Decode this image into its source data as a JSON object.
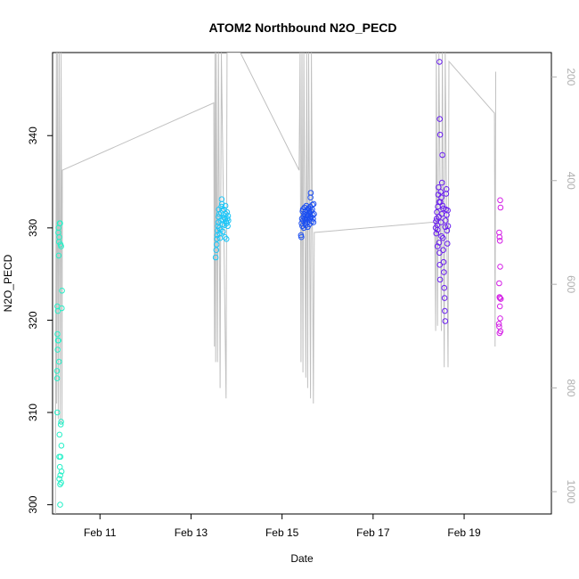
{
  "chart_data": {
    "type": "scatter",
    "title": "ATOM2 Northbound N2O_PECD",
    "xlabel": "Date",
    "ylabel": "N2O_PECD",
    "x_ticks": [
      "Feb 11",
      "Feb 13",
      "Feb 15",
      "Feb 17",
      "Feb 19"
    ],
    "y_ticks": [
      300,
      310,
      320,
      330,
      340
    ],
    "y2_ticks": [
      200,
      400,
      600,
      800,
      1000
    ],
    "xlim": [
      "2016-02-09T23:00",
      "2016-02-20T22:00"
    ],
    "ylim": [
      299,
      349
    ],
    "y2lim": [
      1043,
      153
    ],
    "y2_reversed": true,
    "colors": {
      "flight1": "#25f0c8",
      "flight2": "#1ec6f7",
      "flight3": "#1c4ff0",
      "flight4": "#6a1ef0",
      "flight5": "#d41ee6",
      "altitude": "#c0c0c0"
    },
    "series": [
      {
        "color_key": "flight1",
        "points": [
          [
            "2016-02-10T02:00",
            329.5
          ],
          [
            "2016-02-10T02:10",
            330.0
          ],
          [
            "2016-02-10T02:20",
            328.5
          ],
          [
            "2016-02-10T02:30",
            329.0
          ],
          [
            "2016-02-10T02:45",
            330.5
          ],
          [
            "2016-02-10T03:00",
            330.5
          ],
          [
            "2016-02-10T03:15",
            328.2
          ],
          [
            "2016-02-10T03:30",
            328.0
          ],
          [
            "2016-02-10T02:15",
            327.0
          ],
          [
            "2016-02-10T04:00",
            323.2
          ],
          [
            "2016-02-10T03:50",
            321.3
          ],
          [
            "2016-02-10T01:30",
            321.5
          ],
          [
            "2016-02-10T01:45",
            321.0
          ],
          [
            "2016-02-10T01:35",
            318.5
          ],
          [
            "2016-02-10T01:50",
            317.8
          ],
          [
            "2016-02-10T02:05",
            317.8
          ],
          [
            "2016-02-10T01:40",
            316.8
          ],
          [
            "2016-02-10T02:25",
            315.5
          ],
          [
            "2016-02-10T01:20",
            314.5
          ],
          [
            "2016-02-10T01:25",
            313.7
          ],
          [
            "2016-02-10T01:30",
            310.0
          ],
          [
            "2016-02-10T03:30",
            309.0
          ],
          [
            "2016-02-10T03:20",
            308.7
          ],
          [
            "2016-02-10T02:40",
            307.6
          ],
          [
            "2016-02-10T03:40",
            306.4
          ],
          [
            "2016-02-10T02:30",
            305.2
          ],
          [
            "2016-02-10T03:10",
            305.2
          ],
          [
            "2016-02-10T02:50",
            304.1
          ],
          [
            "2016-02-10T03:45",
            303.6
          ],
          [
            "2016-02-10T03:05",
            303.2
          ],
          [
            "2016-02-10T02:35",
            302.8
          ],
          [
            "2016-02-10T03:30",
            302.4
          ],
          [
            "2016-02-10T03:00",
            302.2
          ],
          [
            "2016-02-10T03:00",
            300.0
          ]
        ]
      },
      {
        "color_key": "flight2",
        "points": [
          [
            "2016-02-13T13:00",
            326.8
          ],
          [
            "2016-02-13T13:20",
            327.6
          ],
          [
            "2016-02-13T13:30",
            328.2
          ],
          [
            "2016-02-13T13:40",
            328.8
          ],
          [
            "2016-02-13T13:50",
            329.2
          ],
          [
            "2016-02-13T14:00",
            329.7
          ],
          [
            "2016-02-13T14:10",
            330.2
          ],
          [
            "2016-02-13T14:20",
            330.6
          ],
          [
            "2016-02-13T14:30",
            331.2
          ],
          [
            "2016-02-13T14:40",
            332.0
          ],
          [
            "2016-02-13T14:50",
            331.5
          ],
          [
            "2016-02-13T15:00",
            330.0
          ],
          [
            "2016-02-13T15:10",
            329.4
          ],
          [
            "2016-02-13T15:20",
            328.9
          ],
          [
            "2016-02-13T15:30",
            329.8
          ],
          [
            "2016-02-13T15:40",
            330.8
          ],
          [
            "2016-02-13T15:50",
            331.6
          ],
          [
            "2016-02-13T16:00",
            332.3
          ],
          [
            "2016-02-13T16:10",
            333.1
          ],
          [
            "2016-02-13T16:20",
            332.6
          ],
          [
            "2016-02-13T16:30",
            331.9
          ],
          [
            "2016-02-13T16:40",
            330.4
          ],
          [
            "2016-02-13T16:50",
            329.6
          ],
          [
            "2016-02-13T17:00",
            330.9
          ],
          [
            "2016-02-13T17:10",
            331.4
          ],
          [
            "2016-02-13T17:20",
            332.0
          ],
          [
            "2016-02-13T17:30",
            331.1
          ],
          [
            "2016-02-13T17:40",
            330.3
          ],
          [
            "2016-02-13T17:50",
            329.0
          ],
          [
            "2016-02-13T18:00",
            331.0
          ],
          [
            "2016-02-13T18:10",
            332.4
          ],
          [
            "2016-02-13T18:20",
            331.5
          ],
          [
            "2016-02-13T18:30",
            330.7
          ],
          [
            "2016-02-13T18:40",
            328.8
          ],
          [
            "2016-02-13T18:50",
            330.5
          ],
          [
            "2016-02-13T19:00",
            331.7
          ],
          [
            "2016-02-13T19:10",
            331.0
          ],
          [
            "2016-02-13T19:20",
            330.2
          ],
          [
            "2016-02-13T19:30",
            331.3
          ],
          [
            "2016-02-13T19:40",
            330.8
          ]
        ]
      },
      {
        "color_key": "flight3",
        "points": [
          [
            "2016-02-15T10:00",
            329.2
          ],
          [
            "2016-02-15T10:10",
            329.0
          ],
          [
            "2016-02-15T10:20",
            330.5
          ],
          [
            "2016-02-15T10:30",
            331.0
          ],
          [
            "2016-02-15T10:40",
            330.2
          ],
          [
            "2016-02-15T10:50",
            331.8
          ],
          [
            "2016-02-15T11:00",
            332.0
          ],
          [
            "2016-02-15T11:10",
            330.8
          ],
          [
            "2016-02-15T11:20",
            331.2
          ],
          [
            "2016-02-15T11:30",
            330.0
          ],
          [
            "2016-02-15T11:40",
            331.5
          ],
          [
            "2016-02-15T11:50",
            332.2
          ],
          [
            "2016-02-15T12:00",
            331.0
          ],
          [
            "2016-02-15T12:10",
            330.5
          ],
          [
            "2016-02-15T12:20",
            331.8
          ],
          [
            "2016-02-15T12:30",
            330.3
          ],
          [
            "2016-02-15T12:40",
            331.4
          ],
          [
            "2016-02-15T12:50",
            332.4
          ],
          [
            "2016-02-15T13:00",
            331.0
          ],
          [
            "2016-02-15T13:10",
            330.6
          ],
          [
            "2016-02-15T13:20",
            331.9
          ],
          [
            "2016-02-15T13:30",
            330.1
          ],
          [
            "2016-02-15T13:40",
            331.3
          ],
          [
            "2016-02-15T13:50",
            332.1
          ],
          [
            "2016-02-15T14:00",
            331.6
          ],
          [
            "2016-02-15T14:10",
            330.9
          ],
          [
            "2016-02-15T14:20",
            331.7
          ],
          [
            "2016-02-15T14:30",
            330.4
          ],
          [
            "2016-02-15T14:40",
            331.1
          ],
          [
            "2016-02-15T14:50",
            332.3
          ],
          [
            "2016-02-15T15:00",
            333.3
          ],
          [
            "2016-02-15T15:10",
            333.8
          ],
          [
            "2016-02-15T15:20",
            331.8
          ],
          [
            "2016-02-15T15:30",
            331.2
          ],
          [
            "2016-02-15T15:40",
            330.7
          ],
          [
            "2016-02-15T15:50",
            332.0
          ],
          [
            "2016-02-15T16:00",
            332.5
          ],
          [
            "2016-02-15T16:10",
            331.4
          ],
          [
            "2016-02-15T16:20",
            331.0
          ],
          [
            "2016-02-15T16:30",
            330.6
          ],
          [
            "2016-02-15T16:40",
            332.6
          ],
          [
            "2016-02-15T16:50",
            331.5
          ],
          [
            "2016-02-15T12:15",
            330.8
          ],
          [
            "2016-02-15T13:15",
            331.3
          ],
          [
            "2016-02-15T14:15",
            331.9
          ]
        ]
      },
      {
        "color_key": "flight4",
        "points": [
          [
            "2016-02-18T09:00",
            330.0
          ],
          [
            "2016-02-18T09:10",
            330.7
          ],
          [
            "2016-02-18T09:20",
            329.4
          ],
          [
            "2016-02-18T09:30",
            331.0
          ],
          [
            "2016-02-18T09:40",
            331.7
          ],
          [
            "2016-02-18T09:50",
            330.3
          ],
          [
            "2016-02-18T10:00",
            329.8
          ],
          [
            "2016-02-18T10:10",
            332.3
          ],
          [
            "2016-02-18T10:20",
            333.6
          ],
          [
            "2016-02-18T10:30",
            334.4
          ],
          [
            "2016-02-18T10:40",
            331.2
          ],
          [
            "2016-02-18T10:50",
            328.4
          ],
          [
            "2016-02-18T11:00",
            327.3
          ],
          [
            "2016-02-18T11:10",
            326.0
          ],
          [
            "2016-02-18T11:20",
            324.4
          ],
          [
            "2016-02-18T11:30",
            332.8
          ],
          [
            "2016-02-18T11:40",
            333.9
          ],
          [
            "2016-02-18T11:50",
            330.6
          ],
          [
            "2016-02-18T12:00",
            329.1
          ],
          [
            "2016-02-18T12:10",
            331.5
          ],
          [
            "2016-02-18T12:20",
            334.9
          ],
          [
            "2016-02-18T12:30",
            337.9
          ],
          [
            "2016-02-18T12:40",
            332.4
          ],
          [
            "2016-02-18T12:50",
            328.9
          ],
          [
            "2016-02-18T13:00",
            327.6
          ],
          [
            "2016-02-18T13:10",
            326.3
          ],
          [
            "2016-02-18T13:20",
            325.2
          ],
          [
            "2016-02-18T13:30",
            323.5
          ],
          [
            "2016-02-18T13:40",
            322.4
          ],
          [
            "2016-02-18T13:50",
            321.0
          ],
          [
            "2016-02-18T14:00",
            319.9
          ],
          [
            "2016-02-18T14:10",
            330.8
          ],
          [
            "2016-02-18T14:20",
            332.0
          ],
          [
            "2016-02-18T14:30",
            333.7
          ],
          [
            "2016-02-18T14:40",
            334.2
          ],
          [
            "2016-02-18T14:50",
            331.4
          ],
          [
            "2016-02-18T15:00",
            329.7
          ],
          [
            "2016-02-18T15:10",
            328.3
          ],
          [
            "2016-02-18T15:20",
            331.9
          ],
          [
            "2016-02-18T15:30",
            330.2
          ],
          [
            "2016-02-18T11:00",
            348.0
          ],
          [
            "2016-02-18T11:10",
            341.8
          ],
          [
            "2016-02-18T11:20",
            340.1
          ],
          [
            "2016-02-18T10:00",
            328.0
          ],
          [
            "2016-02-18T10:50",
            332.8
          ],
          [
            "2016-02-18T12:00",
            333.3
          ],
          [
            "2016-02-18T13:00",
            332.1
          ],
          [
            "2016-02-18T14:00",
            330.1
          ]
        ]
      },
      {
        "color_key": "flight5",
        "points": [
          [
            "2016-02-19T19:00",
            333.0
          ],
          [
            "2016-02-19T19:10",
            332.2
          ],
          [
            "2016-02-19T18:30",
            329.5
          ],
          [
            "2016-02-19T18:40",
            329.0
          ],
          [
            "2016-02-19T18:50",
            328.6
          ],
          [
            "2016-02-19T19:00",
            325.8
          ],
          [
            "2016-02-19T18:30",
            324.0
          ],
          [
            "2016-02-19T18:40",
            322.5
          ],
          [
            "2016-02-19T19:20",
            322.3
          ],
          [
            "2016-02-19T18:50",
            321.5
          ],
          [
            "2016-02-19T19:00",
            320.2
          ],
          [
            "2016-02-19T18:20",
            319.6
          ],
          [
            "2016-02-19T18:30",
            319.3
          ],
          [
            "2016-02-19T19:10",
            318.8
          ],
          [
            "2016-02-19T18:40",
            318.6
          ],
          [
            "2016-02-19T18:50",
            322.4
          ]
        ]
      }
    ],
    "altitude_line": [
      [
        "2016-02-10T00:30",
        1043
      ],
      [
        "2016-02-10T01:00",
        153
      ],
      [
        "2016-02-10T01:10",
        830
      ],
      [
        "2016-02-10T01:40",
        153
      ],
      [
        "2016-02-10T02:00",
        860
      ],
      [
        "2016-02-10T02:30",
        153
      ],
      [
        "2016-02-10T03:00",
        870
      ],
      [
        "2016-02-10T03:30",
        153
      ],
      [
        "2016-02-10T04:00",
        870
      ],
      [
        "2016-02-10T04:10",
        380
      ],
      [
        "2016-02-13T12:00",
        250
      ],
      [
        "2016-02-13T12:20",
        720
      ],
      [
        "2016-02-13T12:40",
        153
      ],
      [
        "2016-02-13T13:00",
        750
      ],
      [
        "2016-02-13T13:20",
        153
      ],
      [
        "2016-02-13T14:00",
        750
      ],
      [
        "2016-02-13T14:30",
        153
      ],
      [
        "2016-02-13T15:20",
        800
      ],
      [
        "2016-02-13T16:00",
        153
      ],
      [
        "2016-02-13T18:30",
        820
      ],
      [
        "2016-02-13T19:00",
        153
      ],
      [
        "2016-02-14T02:00",
        153
      ],
      [
        "2016-02-15T09:00",
        380
      ],
      [
        "2016-02-15T09:30",
        153
      ],
      [
        "2016-02-15T10:00",
        750
      ],
      [
        "2016-02-15T10:30",
        153
      ],
      [
        "2016-02-15T11:00",
        770
      ],
      [
        "2016-02-15T11:30",
        153
      ],
      [
        "2016-02-15T12:30",
        780
      ],
      [
        "2016-02-15T13:00",
        153
      ],
      [
        "2016-02-15T13:30",
        800
      ],
      [
        "2016-02-15T14:00",
        153
      ],
      [
        "2016-02-15T15:00",
        820
      ],
      [
        "2016-02-15T15:30",
        153
      ],
      [
        "2016-02-15T16:30",
        830
      ],
      [
        "2016-02-15T17:00",
        500
      ],
      [
        "2016-02-18T08:30",
        480
      ],
      [
        "2016-02-18T09:00",
        690
      ],
      [
        "2016-02-18T09:20",
        153
      ],
      [
        "2016-02-18T10:00",
        680
      ],
      [
        "2016-02-18T10:40",
        153
      ],
      [
        "2016-02-18T12:00",
        690
      ],
      [
        "2016-02-18T12:30",
        153
      ],
      [
        "2016-02-18T13:30",
        760
      ],
      [
        "2016-02-18T14:00",
        153
      ],
      [
        "2016-02-18T15:30",
        760
      ],
      [
        "2016-02-18T16:00",
        170
      ],
      [
        "2016-02-19T16:00",
        270
      ],
      [
        "2016-02-19T16:20",
        720
      ],
      [
        "2016-02-19T16:40",
        190
      ]
    ]
  }
}
